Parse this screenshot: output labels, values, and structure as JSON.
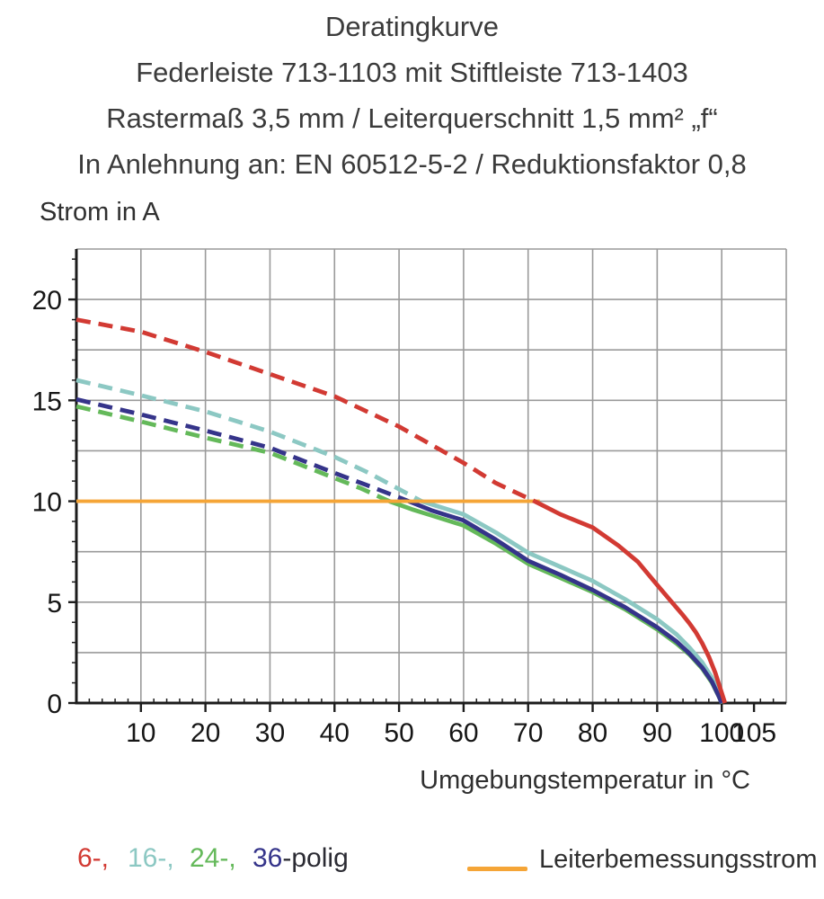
{
  "title": {
    "line1": "Deratingkurve",
    "line2": "Federleiste 713-1103 mit Stiftleiste 713-1403",
    "line3": "Rastermaß 3,5 mm / Leiterquerschnitt 1,5 mm² „f“",
    "line4": "In Anlehnung an: EN 60512-5-2 / Reduktionsfaktor 0,8"
  },
  "chart_data": {
    "type": "line",
    "title": "Deratingkurve",
    "xlabel": "Umgebungstemperatur in °C",
    "ylabel": "Strom in A",
    "x_range": [
      0,
      110
    ],
    "y_range": [
      0,
      22.5
    ],
    "x_grid_step": 10,
    "y_grid_step": 2.5,
    "x_minor_tick_step": 2,
    "y_minor_tick_step": 1,
    "grid_on": true,
    "grid_color": "#9a9a9a",
    "axis_color": "#1c1c1c",
    "x_ticks": [
      {
        "v": 10,
        "label": "10"
      },
      {
        "v": 20,
        "label": "20"
      },
      {
        "v": 30,
        "label": "30"
      },
      {
        "v": 40,
        "label": "40"
      },
      {
        "v": 50,
        "label": "50"
      },
      {
        "v": 60,
        "label": "60"
      },
      {
        "v": 70,
        "label": "70"
      },
      {
        "v": 80,
        "label": "80"
      },
      {
        "v": 90,
        "label": "90"
      },
      {
        "v": 100,
        "label": "100"
      },
      {
        "v": 105,
        "label": "105"
      }
    ],
    "y_ticks": [
      {
        "v": 0,
        "label": "0"
      },
      {
        "v": 5,
        "label": "5"
      },
      {
        "v": 10,
        "label": "10"
      },
      {
        "v": 15,
        "label": "15"
      },
      {
        "v": 20,
        "label": "20"
      }
    ],
    "reference_line": {
      "name": "Leiterbemessungsstrom",
      "y": 10,
      "x_start": 0,
      "x_end": 71.8,
      "color": "#f5a537"
    },
    "series": [
      {
        "name": "24-polig",
        "poles": 24,
        "color": "#64b95a",
        "dashed": [
          [
            0,
            14.7
          ],
          [
            10,
            13.95
          ],
          [
            20,
            13.15
          ],
          [
            30,
            12.4
          ],
          [
            40,
            11.15
          ],
          [
            44,
            10.65
          ],
          [
            48.5,
            10
          ]
        ],
        "solid": [
          [
            48.5,
            10
          ],
          [
            52,
            9.6
          ],
          [
            55,
            9.3
          ],
          [
            60,
            8.8
          ],
          [
            65,
            7.9
          ],
          [
            70,
            6.9
          ],
          [
            75,
            6.2
          ],
          [
            80,
            5.5
          ],
          [
            85,
            4.65
          ],
          [
            90,
            3.65
          ],
          [
            93,
            2.95
          ],
          [
            95,
            2.4
          ],
          [
            97,
            1.7
          ],
          [
            98.5,
            1.0
          ],
          [
            99.6,
            0.3
          ],
          [
            100,
            0
          ]
        ]
      },
      {
        "name": "16-polig",
        "poles": 16,
        "color": "#8cc8c3",
        "dashed": [
          [
            0,
            16.0
          ],
          [
            10,
            15.25
          ],
          [
            20,
            14.45
          ],
          [
            30,
            13.45
          ],
          [
            40,
            12.2
          ],
          [
            45,
            11.45
          ],
          [
            50,
            10.6
          ],
          [
            53.5,
            10
          ]
        ],
        "solid": [
          [
            53.5,
            10
          ],
          [
            57,
            9.65
          ],
          [
            60,
            9.35
          ],
          [
            65,
            8.45
          ],
          [
            70,
            7.45
          ],
          [
            75,
            6.75
          ],
          [
            80,
            6.05
          ],
          [
            85,
            5.15
          ],
          [
            90,
            4.15
          ],
          [
            93,
            3.4
          ],
          [
            95,
            2.75
          ],
          [
            97,
            2.0
          ],
          [
            98.5,
            1.25
          ],
          [
            99.6,
            0.4
          ],
          [
            100.2,
            0
          ]
        ]
      },
      {
        "name": "36-polig",
        "poles": 36,
        "color": "#35348a",
        "dashed": [
          [
            0,
            15.05
          ],
          [
            10,
            14.3
          ],
          [
            20,
            13.5
          ],
          [
            30,
            12.65
          ],
          [
            40,
            11.4
          ],
          [
            45,
            10.8
          ],
          [
            51.5,
            10
          ]
        ],
        "solid": [
          [
            51.5,
            10
          ],
          [
            55,
            9.55
          ],
          [
            60,
            9.05
          ],
          [
            65,
            8.1
          ],
          [
            70,
            7.05
          ],
          [
            75,
            6.35
          ],
          [
            80,
            5.6
          ],
          [
            85,
            4.75
          ],
          [
            90,
            3.75
          ],
          [
            93,
            3.05
          ],
          [
            95,
            2.45
          ],
          [
            97,
            1.75
          ],
          [
            98.5,
            1.05
          ],
          [
            99.6,
            0.3
          ],
          [
            100,
            0
          ]
        ]
      },
      {
        "name": "6-polig",
        "poles": 6,
        "color": "#d23a33",
        "dashed": [
          [
            0,
            19.0
          ],
          [
            10,
            18.4
          ],
          [
            20,
            17.4
          ],
          [
            30,
            16.3
          ],
          [
            40,
            15.2
          ],
          [
            50,
            13.7
          ],
          [
            55,
            12.8
          ],
          [
            60,
            11.9
          ],
          [
            65,
            10.9
          ],
          [
            71,
            10
          ]
        ],
        "solid": [
          [
            71,
            10
          ],
          [
            75,
            9.35
          ],
          [
            80,
            8.7
          ],
          [
            84,
            7.8
          ],
          [
            87,
            7.0
          ],
          [
            90,
            5.85
          ],
          [
            92,
            5.1
          ],
          [
            94,
            4.35
          ],
          [
            95,
            3.95
          ],
          [
            96,
            3.5
          ],
          [
            97,
            2.95
          ],
          [
            98,
            2.3
          ],
          [
            99,
            1.5
          ],
          [
            99.8,
            0.7
          ],
          [
            100.5,
            0
          ]
        ]
      }
    ]
  },
  "legend": {
    "series_labels": [
      {
        "text": "6-,",
        "color": "#d23a33"
      },
      {
        "text": "16-,",
        "color": "#8cc8c3"
      },
      {
        "text": "24-,",
        "color": "#64b95a"
      },
      {
        "text": "36",
        "color": "#35348a"
      }
    ],
    "polig_suffix": "-polig",
    "rated_current_label": "Leiterbemessungsstrom",
    "rated_current_color": "#f5a537"
  }
}
